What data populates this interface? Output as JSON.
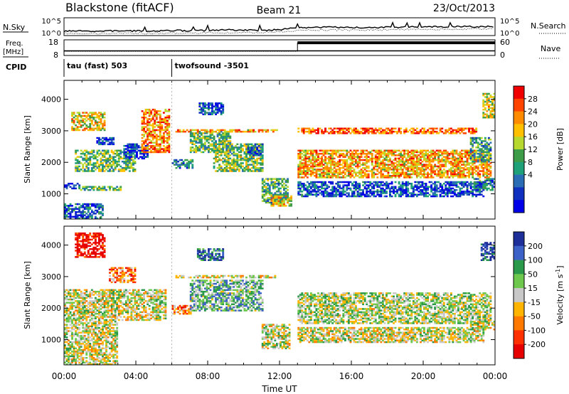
{
  "header": {
    "title": "Blackstone (fitACF)",
    "beam": "Beam 21",
    "date": "23/Oct/2013"
  },
  "chart_data": [
    {
      "type": "line",
      "name": "noise-panel",
      "left_label": "N.Sky",
      "right_label": "N.Search",
      "left_ticks": [
        "10^5",
        "10^0"
      ],
      "right_ticks": [
        "10^5",
        "10^0"
      ],
      "series": [
        {
          "name": "N.Sky",
          "style": "solid"
        },
        {
          "name": "N.Search",
          "style": "dotted"
        }
      ],
      "x_hours": [
        0,
        1,
        2,
        3,
        4,
        5,
        6,
        7,
        8,
        9,
        10,
        11,
        12,
        13,
        14,
        15,
        16,
        17,
        18,
        19,
        20,
        21,
        22,
        23,
        24
      ],
      "nsky_log": [
        1.0,
        1.1,
        1.0,
        1.2,
        1.1,
        1.1,
        1.3,
        1.2,
        1.3,
        1.5,
        1.4,
        1.3,
        1.6,
        2.2,
        2.4,
        2.4,
        2.3,
        2.3,
        2.4,
        2.5,
        2.6,
        2.6,
        2.7,
        2.6,
        2.7
      ],
      "nsearch_log": [
        0.3,
        0.3,
        0.3,
        0.3,
        0.3,
        0.3,
        0.4,
        0.4,
        0.5,
        0.5,
        0.6,
        0.6,
        0.8,
        1.3,
        1.5,
        1.5,
        1.4,
        1.5,
        1.6,
        1.7,
        1.8,
        1.7,
        1.8,
        1.8,
        1.9
      ]
    },
    {
      "type": "line",
      "name": "frequency-nave-panel",
      "left_label_top": "Freq.",
      "left_label_bottom": "[MHz]",
      "right_label": "Nave",
      "left_ticks": [
        "18",
        "8"
      ],
      "right_ticks": [
        "60",
        "0"
      ],
      "freq_mhz": [
        {
          "from": 0,
          "to": 24,
          "value": 10.5
        }
      ],
      "nave": [
        {
          "from": 0,
          "to": 13,
          "value": 13
        },
        {
          "from": 13,
          "to": 24,
          "value": 53
        }
      ]
    },
    {
      "type": "table",
      "name": "cpid-panel",
      "label": "CPID",
      "segments": [
        {
          "label": "tau (fast) 503",
          "from": 0,
          "to": 6
        },
        {
          "label": "twofsound -3501",
          "from": 6,
          "to": 24
        }
      ]
    },
    {
      "type": "heatmap",
      "name": "power-panel",
      "ylabel": "Slant Range [km]",
      "ylim": [
        200,
        4600
      ],
      "yticks": [
        1000,
        2000,
        3000,
        4000
      ],
      "colorbar": {
        "label": "Power [dB]",
        "ticks": [
          "28",
          "24",
          "20",
          "16",
          "12",
          "8",
          "4"
        ],
        "colors": [
          "#f00000",
          "#ff4400",
          "#ff8c00",
          "#ffc000",
          "#b7d92f",
          "#3c9c48",
          "#1ea078",
          "#2a6db4",
          "#1030c0",
          "#0000e8"
        ]
      },
      "bands": [
        {
          "t0": 0.0,
          "t1": 0.8,
          "r0": 1150,
          "r1": 1350,
          "level": 0.88
        },
        {
          "t0": 0.8,
          "t1": 3.2,
          "r0": 1100,
          "r1": 1250,
          "level": 0.55
        },
        {
          "t0": 0.0,
          "t1": 2.2,
          "r0": 200,
          "r1": 700,
          "level": 0.8
        },
        {
          "t0": 1.8,
          "t1": 2.8,
          "r0": 2550,
          "r1": 2800,
          "level": 0.85
        },
        {
          "t0": 0.4,
          "t1": 2.3,
          "r0": 3000,
          "r1": 3600,
          "level": 0.35
        },
        {
          "t0": 0.6,
          "t1": 4.0,
          "r0": 1700,
          "r1": 2400,
          "level": 0.55
        },
        {
          "t0": 3.3,
          "t1": 4.6,
          "r0": 2100,
          "r1": 2600,
          "level": 0.85
        },
        {
          "t0": 4.3,
          "t1": 5.8,
          "r0": 2300,
          "r1": 3700,
          "level": 0.25
        },
        {
          "t0": 6.0,
          "t1": 7.1,
          "r0": 1800,
          "r1": 2100,
          "level": 0.72
        },
        {
          "t0": 7.0,
          "t1": 9.2,
          "r0": 2300,
          "r1": 3000,
          "level": 0.55
        },
        {
          "t0": 7.5,
          "t1": 8.8,
          "r0": 3500,
          "r1": 3900,
          "level": 0.8
        },
        {
          "t0": 6.2,
          "t1": 11.8,
          "r0": 2950,
          "r1": 3050,
          "level": 0.3
        },
        {
          "t0": 8.3,
          "t1": 11.0,
          "r0": 1700,
          "r1": 2600,
          "level": 0.5
        },
        {
          "t0": 10.2,
          "t1": 11.0,
          "r0": 2200,
          "r1": 2600,
          "level": 0.75
        },
        {
          "t0": 11.0,
          "t1": 12.4,
          "r0": 700,
          "r1": 1500,
          "level": 0.6
        },
        {
          "t0": 11.5,
          "t1": 12.6,
          "r0": 600,
          "r1": 950,
          "level": 0.35
        },
        {
          "t0": 13.0,
          "t1": 23.4,
          "r0": 900,
          "r1": 1400,
          "level": 0.82
        },
        {
          "t0": 13.0,
          "t1": 23.8,
          "r0": 1500,
          "r1": 2400,
          "level": 0.3
        },
        {
          "t0": 13.0,
          "t1": 23.0,
          "r0": 2900,
          "r1": 3100,
          "level": 0.18
        },
        {
          "t0": 22.8,
          "t1": 24.0,
          "r0": 1100,
          "r1": 1500,
          "level": 0.7
        },
        {
          "t0": 22.6,
          "t1": 23.8,
          "r0": 2000,
          "r1": 2800,
          "level": 0.65
        },
        {
          "t0": 23.3,
          "t1": 24.0,
          "r0": 3400,
          "r1": 4200,
          "level": 0.4
        }
      ]
    },
    {
      "type": "heatmap",
      "name": "velocity-panel",
      "ylabel": "Slant Range [km]",
      "xlabel": "Time UT",
      "ylim": [
        200,
        4600
      ],
      "yticks": [
        1000,
        2000,
        3000,
        4000
      ],
      "xticks": [
        "00:00",
        "04:00",
        "08:00",
        "12:00",
        "16:00",
        "20:00",
        "00:00"
      ],
      "colorbar": {
        "label": "Velocity [m s^-1]",
        "ticks": [
          "200",
          "100",
          "50",
          "15",
          "-15",
          "-50",
          "-100",
          "-200"
        ],
        "colors": [
          "#1e2f9a",
          "#3c62c8",
          "#2a9a4a",
          "#6ec84e",
          "#c8c8c8",
          "#ffb400",
          "#ff7800",
          "#ff3000",
          "#e60000"
        ]
      },
      "bands": [
        {
          "t0": 0.0,
          "t1": 3.0,
          "r0": 200,
          "r1": 1600,
          "level": 0.5
        },
        {
          "t0": 0.0,
          "t1": 5.6,
          "r0": 1600,
          "r1": 2600,
          "level": 0.5
        },
        {
          "t0": 0.6,
          "t1": 2.3,
          "r0": 3600,
          "r1": 4400,
          "level": 0.95
        },
        {
          "t0": 2.5,
          "t1": 4.0,
          "r0": 2800,
          "r1": 3300,
          "level": 0.7
        },
        {
          "t0": 6.0,
          "t1": 7.0,
          "r0": 1800,
          "r1": 2100,
          "level": 0.7
        },
        {
          "t0": 6.2,
          "t1": 11.8,
          "r0": 2950,
          "r1": 3050,
          "level": 0.55
        },
        {
          "t0": 7.0,
          "t1": 11.0,
          "r0": 1900,
          "r1": 2900,
          "level": 0.35
        },
        {
          "t0": 7.4,
          "t1": 8.8,
          "r0": 3500,
          "r1": 3900,
          "level": 0.15
        },
        {
          "t0": 11.0,
          "t1": 12.5,
          "r0": 700,
          "r1": 1500,
          "level": 0.5
        },
        {
          "t0": 13.0,
          "t1": 23.4,
          "r0": 900,
          "r1": 1400,
          "level": 0.5
        },
        {
          "t0": 13.0,
          "t1": 23.8,
          "r0": 1500,
          "r1": 2500,
          "level": 0.45
        },
        {
          "t0": 22.6,
          "t1": 24.0,
          "r0": 1300,
          "r1": 1600,
          "level": 0.5
        },
        {
          "t0": 23.2,
          "t1": 24.0,
          "r0": 3500,
          "r1": 4100,
          "level": 0.1
        }
      ]
    }
  ]
}
